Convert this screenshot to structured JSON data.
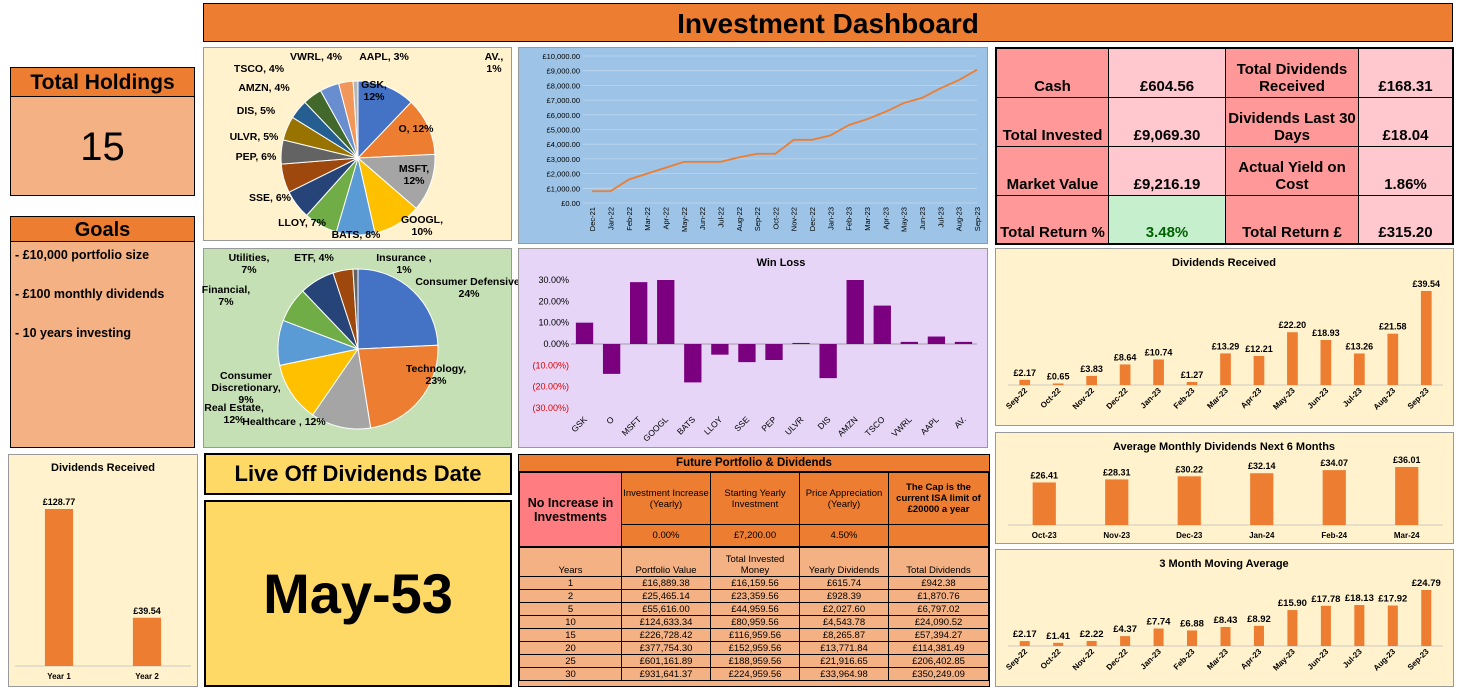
{
  "title": "Investment Dashboard",
  "total_holdings": {
    "label": "Total Holdings",
    "value": "15"
  },
  "goals": {
    "label": "Goals",
    "items": [
      "- £10,000 portfolio size",
      "- £100 monthly dividends",
      "- 10 years investing"
    ]
  },
  "live_off": {
    "label": "Live Off Dividends Date",
    "value": "May-53"
  },
  "metrics": {
    "cash_label": "Cash",
    "cash": "£604.56",
    "total_div_label": "Total Dividends Received",
    "total_div": "£168.31",
    "invested_label": "Total Invested",
    "invested": "£9,069.30",
    "div30_label": "Dividends Last 30 Days",
    "div30": "£18.04",
    "market_label": "Market Value",
    "market": "£9,216.19",
    "yoc_label": "Actual Yield on Cost",
    "yoc": "1.86%",
    "return_pct_label": "Total Return %",
    "return_pct": "3.48%",
    "return_gbp_label": "Total Return £",
    "return_gbp": "£315.20"
  },
  "colors": {
    "orange": "#ED7D31",
    "salmon": "#F4B183",
    "pink": "#FF9999",
    "green_cell": "#C6EFCE",
    "purple": "#7B0080",
    "blue_panel": "#9DC3E6",
    "purple_panel": "#E6D5F7",
    "green_panel": "#C5E0B4",
    "cream_panel": "#FFF2CC"
  },
  "future": {
    "title": "Future Portfolio & Dividends",
    "no_increase": "No Increase in Investments",
    "headers": [
      "Investment Increase (Yearly)",
      "Starting Yearly Investment",
      "Price Appreciation (Yearly)",
      "The Cap is the current ISA limit of £20000 a year"
    ],
    "params": [
      "0.00%",
      "£7,200.00",
      "4.50%",
      ""
    ],
    "columns": [
      "Years",
      "Portfolio Value",
      "Total Invested Money",
      "Yearly Dividends",
      "Total Dividends"
    ],
    "rows": [
      [
        "1",
        "£16,889.38",
        "£16,159.56",
        "£615.74",
        "£942.38"
      ],
      [
        "2",
        "£25,465.14",
        "£23,359.56",
        "£928.39",
        "£1,870.76"
      ],
      [
        "5",
        "£55,616.00",
        "£44,959.56",
        "£2,027.60",
        "£6,797.02"
      ],
      [
        "10",
        "£124,633.34",
        "£80,959.56",
        "£4,543.78",
        "£24,090.52"
      ],
      [
        "15",
        "£226,728.42",
        "£116,959.56",
        "£8,265.87",
        "£57,394.27"
      ],
      [
        "20",
        "£377,754.30",
        "£152,959.56",
        "£13,771.84",
        "£114,381.49"
      ],
      [
        "25",
        "£601,161.89",
        "£188,959.56",
        "£21,916.65",
        "£206,402.85"
      ],
      [
        "30",
        "£931,641.37",
        "£224,959.56",
        "£33,964.98",
        "£350,249.09"
      ]
    ]
  },
  "chart_data": [
    {
      "id": "holdings-pie",
      "type": "pie",
      "labels": [
        "GSK, 12%",
        "O, 12%",
        "MSFT, 12%",
        "GOOGL, 10%",
        "BATS, 8%",
        "LLOY, 7%",
        "SSE, 6%",
        "PEP, 6%",
        "ULVR, 5%",
        "DIS, 5%",
        "AMZN, 4%",
        "TSCO, 4%",
        "VWRL, 4%",
        "AAPL, 3%",
        "AV., 1%"
      ],
      "values": [
        12,
        12,
        12,
        10,
        8,
        7,
        6,
        6,
        5,
        5,
        4,
        4,
        4,
        3,
        1
      ],
      "colors": [
        "#4472C4",
        "#ED7D31",
        "#A5A5A5",
        "#FFC000",
        "#5B9BD5",
        "#70AD47",
        "#264478",
        "#9E480E",
        "#636363",
        "#997300",
        "#255E91",
        "#43682B",
        "#698ED0",
        "#F1975A",
        "#B7B7B7"
      ]
    },
    {
      "id": "sector-pie",
      "type": "pie",
      "labels": [
        "Consumer Defensive, 24%",
        "Technology, 23%",
        "Healthcare , 12%",
        "Real Estate, 12%",
        "Consumer Discretionary, 9%",
        "Financial, 7%",
        "Utilities, 7%",
        "ETF, 4%",
        "Insurance , 1%"
      ],
      "values": [
        24,
        23,
        12,
        12,
        9,
        7,
        7,
        4,
        1
      ],
      "colors": [
        "#4472C4",
        "#ED7D31",
        "#A5A5A5",
        "#FFC000",
        "#5B9BD5",
        "#70AD47",
        "#264478",
        "#9E480E",
        "#636363"
      ]
    },
    {
      "id": "invested-line",
      "type": "line",
      "x": [
        "Dec-21",
        "Jan-22",
        "Feb-22",
        "Mar-22",
        "Apr-22",
        "May-22",
        "Jun-22",
        "Jul-22",
        "Aug-22",
        "Sep-22",
        "Oct-22",
        "Nov-22",
        "Dec-22",
        "Jan-23",
        "Feb-23",
        "Mar-23",
        "Apr-23",
        "May-23",
        "Jun-23",
        "Jul-23",
        "Aug-23",
        "Sep-23"
      ],
      "values": [
        800,
        800,
        1600,
        2000,
        2400,
        2800,
        2800,
        2800,
        3100,
        3350,
        3350,
        4300,
        4300,
        4600,
        5300,
        5700,
        6200,
        6800,
        7150,
        7800,
        8350,
        9069.3
      ],
      "ylim": [
        0,
        10000
      ],
      "yticks": [
        "£0.00",
        "£1,000.00",
        "£2,000.00",
        "£3,000.00",
        "£4,000.00",
        "£5,000.00",
        "£6,000.00",
        "£7,000.00",
        "£8,000.00",
        "£9,000.00",
        "£10,000.00"
      ],
      "grid": true
    },
    {
      "id": "win-loss",
      "type": "bar",
      "title": "Win Loss",
      "categories": [
        "GSK",
        "O",
        "MSFT",
        "GOOGL",
        "BATS",
        "LLOY",
        "SSE",
        "PEP",
        "ULVR",
        "DIS",
        "AMZN",
        "TSCO",
        "VWRL",
        "AAPL",
        "AV."
      ],
      "values": [
        0.1,
        -0.14,
        0.29,
        0.3,
        -0.18,
        -0.05,
        -0.085,
        -0.075,
        0.005,
        -0.16,
        0.3,
        0.18,
        0.01,
        0.035,
        0.01
      ],
      "ylim": [
        -0.3,
        0.3
      ],
      "yticks": [
        "30.00%",
        "20.00%",
        "10.00%",
        "0.00%",
        "(10.00%)",
        "(20.00%)",
        "(30.00%)"
      ]
    },
    {
      "id": "dividends-received",
      "type": "bar",
      "title": "Dividends Received",
      "categories": [
        "Sep-22",
        "Oct-22",
        "Nov-22",
        "Dec-22",
        "Jan-23",
        "Feb-23",
        "Mar-23",
        "Apr-23",
        "May-23",
        "Jun-23",
        "Jul-23",
        "Aug-23",
        "Sep-23"
      ],
      "values": [
        2.17,
        0.65,
        3.83,
        8.64,
        10.74,
        1.27,
        13.29,
        12.21,
        22.2,
        18.93,
        13.26,
        21.58,
        39.54
      ],
      "labels": [
        "£2.17",
        "£0.65",
        "£3.83",
        "£8.64",
        "£10.74",
        "£1.27",
        "£13.29",
        "£12.21",
        "£22.20",
        "£18.93",
        "£13.26",
        "£21.58",
        "£39.54"
      ]
    },
    {
      "id": "avg-monthly",
      "type": "bar",
      "title": "Average Monthly Dividends Next 6 Months",
      "categories": [
        "Oct-23",
        "Nov-23",
        "Dec-23",
        "Jan-24",
        "Feb-24",
        "Mar-24"
      ],
      "values": [
        26.41,
        28.31,
        30.22,
        32.14,
        34.07,
        36.01
      ],
      "labels": [
        "£26.41",
        "£28.31",
        "£30.22",
        "£32.14",
        "£34.07",
        "£36.01"
      ]
    },
    {
      "id": "moving-avg",
      "type": "bar",
      "title": "3 Month Moving Average",
      "categories": [
        "Sep-22",
        "Oct-22",
        "Nov-22",
        "Dec-22",
        "Jan-23",
        "Feb-23",
        "Mar-23",
        "Apr-23",
        "May-23",
        "Jun-23",
        "Jul-23",
        "Aug-23",
        "Sep-23"
      ],
      "values": [
        2.17,
        1.41,
        2.22,
        4.37,
        7.74,
        6.88,
        8.43,
        8.92,
        15.9,
        17.78,
        18.13,
        17.92,
        24.79
      ],
      "labels": [
        "£2.17",
        "£1.41",
        "£2.22",
        "£4.37",
        "£7.74",
        "£6.88",
        "£8.43",
        "£8.92",
        "£15.90",
        "£17.78",
        "£18.13",
        "£17.92",
        "£24.79"
      ]
    },
    {
      "id": "yearly-div",
      "type": "bar",
      "title": "Dividends Received",
      "categories": [
        "Year 1",
        "Year 2"
      ],
      "values": [
        128.77,
        39.54
      ],
      "labels": [
        "£128.77",
        "£39.54"
      ]
    }
  ]
}
